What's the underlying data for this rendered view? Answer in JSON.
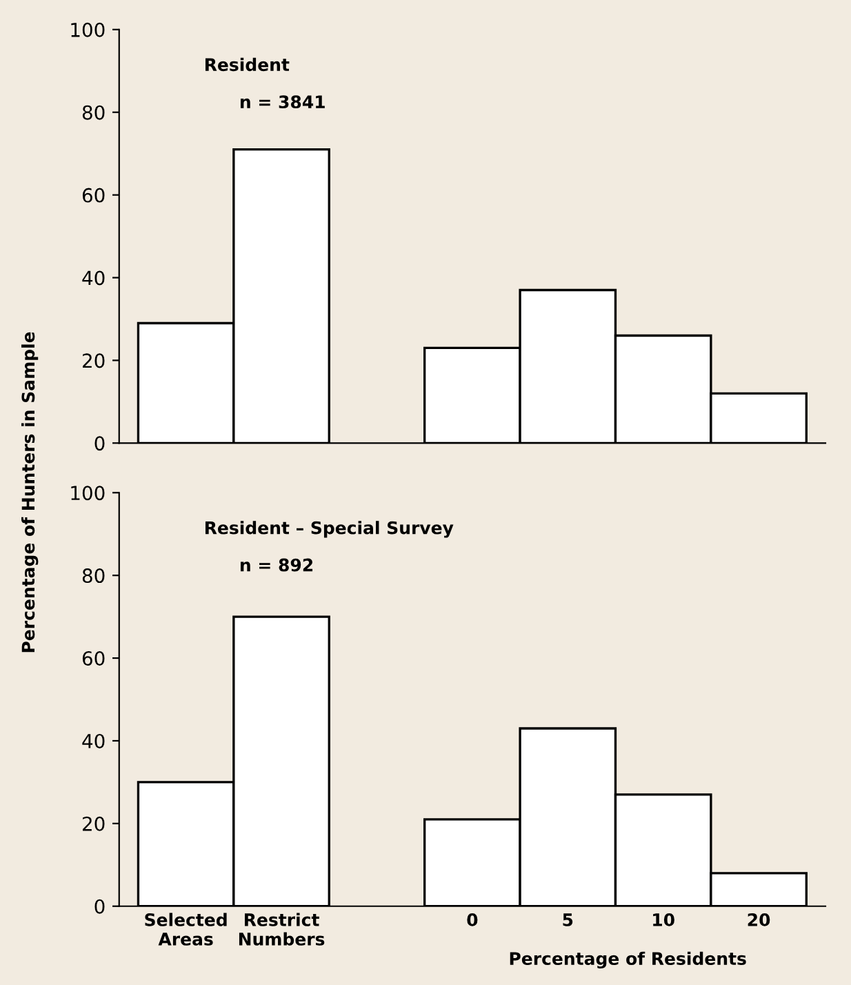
{
  "chart_data": [
    {
      "type": "bar",
      "categories": [
        null,
        null,
        null,
        null,
        null,
        null,
        null
      ],
      "values": [
        29,
        71,
        null,
        23,
        37,
        26,
        12
      ],
      "color": "#ffffff",
      "ylim": [
        0,
        100
      ],
      "yticks": [
        0,
        20,
        40,
        60,
        80,
        100
      ],
      "ylabel": "Percentage of Hunters in Sample",
      "annotations": [
        "Resident",
        "n = 3841"
      ],
      "tick_labels": "y",
      "grid": false
    },
    {
      "type": "bar",
      "categories": [
        "Selected\nAreas",
        "Restrict\nNumbers",
        null,
        "0",
        "5",
        "10",
        "20"
      ],
      "values": [
        30,
        70,
        null,
        21,
        43,
        27,
        8
      ],
      "color": "#ffffff",
      "ylim": [
        0,
        100
      ],
      "yticks": [
        0,
        20,
        40,
        60,
        80,
        100
      ],
      "xlabel": "Percentage of Residents",
      "annotations": [
        "Resident – Special Survey",
        "n = 892"
      ],
      "grid": false
    }
  ]
}
